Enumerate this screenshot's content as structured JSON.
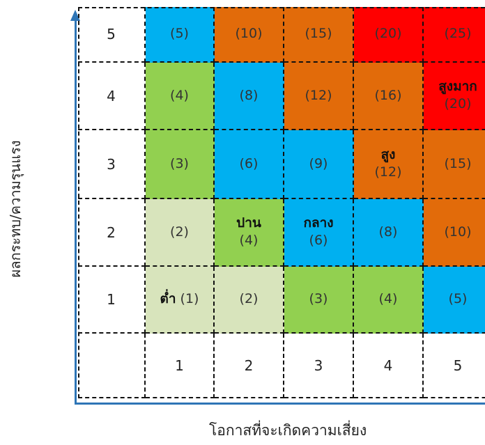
{
  "axis_labels": {
    "y": "ผลกระทบ/ความรุนแรง",
    "x": "โอกาสที่จะเกิดความเสี่ยง"
  },
  "colors": {
    "very_low": "#d8e4bc",
    "low": "#92d050",
    "medium": "#00b0f0",
    "high": "#e26b0a",
    "very_high": "#ff0000",
    "axis": "#2e75b6"
  },
  "row_headers": [
    "5",
    "4",
    "3",
    "2",
    "1"
  ],
  "col_headers": [
    "1",
    "2",
    "3",
    "4",
    "5"
  ],
  "rows": [
    [
      {
        "value": "(5)",
        "level": "medium"
      },
      {
        "value": "(10)",
        "level": "high"
      },
      {
        "value": "(15)",
        "level": "high"
      },
      {
        "value": "(20)",
        "level": "very_high"
      },
      {
        "value": "(25)",
        "level": "very_high"
      }
    ],
    [
      {
        "value": "(4)",
        "level": "low"
      },
      {
        "value": "(8)",
        "level": "medium"
      },
      {
        "value": "(12)",
        "level": "high"
      },
      {
        "value": "(16)",
        "level": "high"
      },
      {
        "value": "(20)",
        "level": "very_high",
        "label": "สูงมาก"
      }
    ],
    [
      {
        "value": "(3)",
        "level": "low"
      },
      {
        "value": "(6)",
        "level": "medium"
      },
      {
        "value": "(9)",
        "level": "medium"
      },
      {
        "value": "(12)",
        "level": "high",
        "label": "สูง"
      },
      {
        "value": "(15)",
        "level": "high"
      }
    ],
    [
      {
        "value": "(2)",
        "level": "very_low"
      },
      {
        "value": "(4)",
        "level": "low",
        "label": "ปาน"
      },
      {
        "value": "(6)",
        "level": "medium",
        "label": "กลาง"
      },
      {
        "value": "(8)",
        "level": "medium"
      },
      {
        "value": "(10)",
        "level": "high"
      }
    ],
    [
      {
        "value": "(1)",
        "level": "very_low",
        "label": "ต่ำ",
        "inline": true
      },
      {
        "value": "(2)",
        "level": "very_low"
      },
      {
        "value": "(3)",
        "level": "low"
      },
      {
        "value": "(4)",
        "level": "low"
      },
      {
        "value": "(5)",
        "level": "medium"
      }
    ]
  ]
}
